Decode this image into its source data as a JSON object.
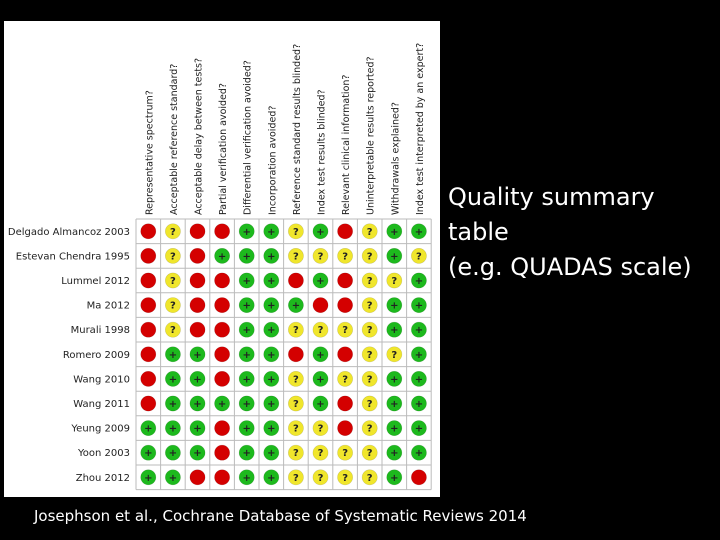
{
  "questions": [
    "Representative spectrum?",
    "Acceptable reference standard?",
    "Acceptable delay between tests?",
    "Partial verification avoided?",
    "Differential verification avoided?",
    "Incorporation avoided?",
    "Reference standard results blinded?",
    "Index test results blinded?",
    "Relevant clinical information?",
    "Uninterpretable results reported?",
    "Withdrawals explained?",
    "Index test interpreted by an expert?"
  ],
  "studies": [
    {
      "name": "Delgado Almancoz 2003",
      "ratings": [
        "-",
        "?",
        "-",
        "-",
        "+",
        "+",
        "?",
        "+",
        "-",
        "?",
        "+",
        "+"
      ]
    },
    {
      "name": "Estevan Chendra 1995",
      "ratings": [
        "-",
        "?",
        "-",
        "+",
        "+",
        "+",
        "?",
        "?",
        "?",
        "?",
        "+",
        "?"
      ]
    },
    {
      "name": "Lummel 2012",
      "ratings": [
        "-",
        "?",
        "-",
        "-",
        "+",
        "+",
        "-",
        "+",
        "-",
        "?",
        "?",
        "+"
      ]
    },
    {
      "name": "Ma 2012",
      "ratings": [
        "-",
        "?",
        "-",
        "-",
        "+",
        "+",
        "+",
        "-",
        "-",
        "?",
        "+",
        "+"
      ]
    },
    {
      "name": "Murali 1998",
      "ratings": [
        "-",
        "?",
        "-",
        "-",
        "+",
        "+",
        "?",
        "?",
        "?",
        "?",
        "+",
        "+"
      ]
    },
    {
      "name": "Romero 2009",
      "ratings": [
        "-",
        "+",
        "+",
        "-",
        "+",
        "+",
        "-",
        "+",
        "-",
        "?",
        "?",
        "+"
      ]
    },
    {
      "name": "Wang 2010",
      "ratings": [
        "-",
        "+",
        "+",
        "-",
        "+",
        "+",
        "?",
        "+",
        "?",
        "?",
        "+",
        "+"
      ]
    },
    {
      "name": "Wang 2011",
      "ratings": [
        "-",
        "+",
        "+",
        "+",
        "+",
        "+",
        "?",
        "+",
        "-",
        "?",
        "+",
        "+"
      ]
    },
    {
      "name": "Yeung 2009",
      "ratings": [
        "+",
        "+",
        "+",
        "-",
        "+",
        "+",
        "?",
        "?",
        "-",
        "?",
        "+",
        "+"
      ]
    },
    {
      "name": "Yoon 2003",
      "ratings": [
        "+",
        "+",
        "+",
        "-",
        "+",
        "+",
        "?",
        "?",
        "?",
        "?",
        "+",
        "+"
      ]
    },
    {
      "name": "Zhou 2012",
      "ratings": [
        "+",
        "+",
        "-",
        "-",
        "+",
        "+",
        "?",
        "?",
        "?",
        "?",
        "+",
        "-"
      ]
    }
  ],
  "colors": {
    "high_risk": "#d40000",
    "low_risk": "#1db91d",
    "unclear": "#f0e62c"
  },
  "caption": {
    "line1": "Quality summary",
    "line2": "table",
    "line3": "(e.g. QUADAS scale)"
  },
  "citation": "Josephson et al., Cochrane Database of Systematic Reviews 2014"
}
